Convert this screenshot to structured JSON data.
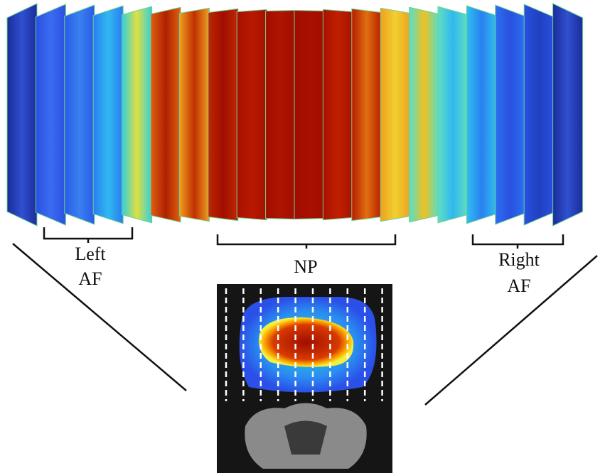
{
  "labels": {
    "left_af": [
      "Left",
      "AF"
    ],
    "np": [
      "NP"
    ],
    "right_af": [
      "Right",
      "AF"
    ]
  }
}
